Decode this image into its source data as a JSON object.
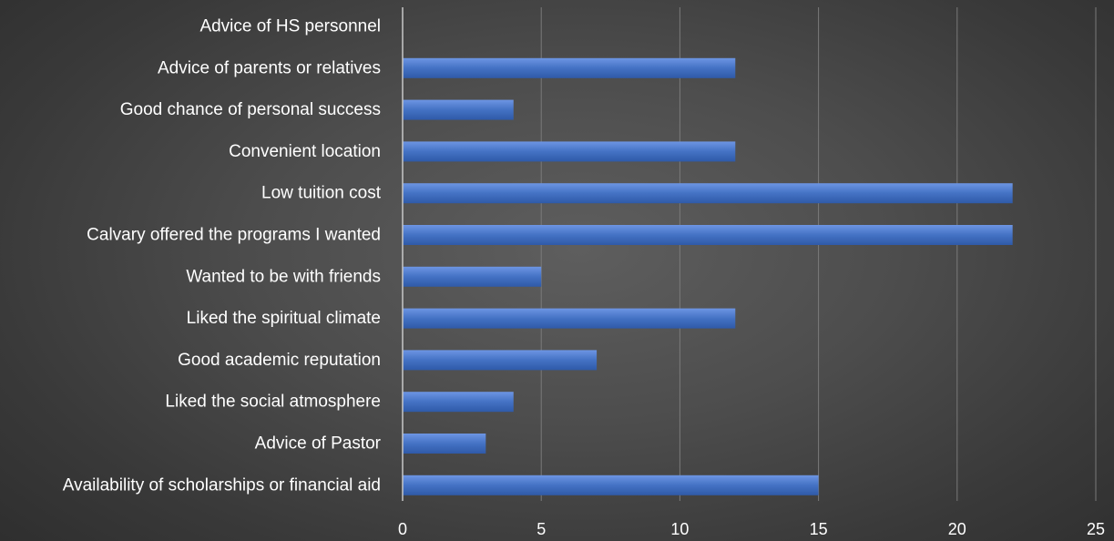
{
  "chart_data": {
    "type": "bar",
    "orientation": "horizontal",
    "title": "",
    "xlabel": "",
    "ylabel": "",
    "xlim": [
      0,
      25
    ],
    "x_ticks": [
      0,
      5,
      10,
      15,
      20,
      25
    ],
    "grid": true,
    "legend": "none",
    "categories": [
      "Advice of HS personnel",
      "Advice of parents or relatives",
      "Good chance of personal success",
      "Convenient location",
      "Low tuition cost",
      "Calvary offered the programs I wanted",
      "Wanted to be with friends",
      "Liked the spiritual climate",
      "Good academic reputation",
      "Liked the social atmosphere",
      "Advice of Pastor",
      "Availability of scholarships or financial aid"
    ],
    "values": [
      0,
      12,
      4,
      12,
      22,
      22,
      5,
      12,
      7,
      4,
      3,
      15
    ],
    "colors": {
      "bar_light": "#6d95e3",
      "bar_mid": "#4472c4",
      "bar_dark": "#2f5aa8",
      "gridline": "#7a7a7a",
      "axis": "#c8c8c8",
      "text": "#ffffff"
    }
  }
}
